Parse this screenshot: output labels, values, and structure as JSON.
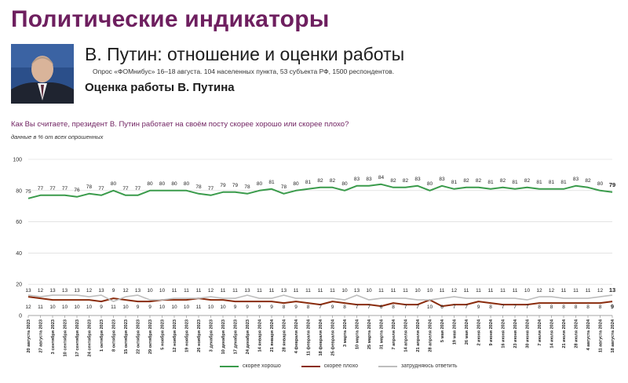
{
  "header": {
    "title": "Политические индикаторы",
    "subtitle": "В. Путин: отношение и оценки работы",
    "poll_info": "Опрос «ФОМнибус» 16–18 августа. 104 населенных пункта, 53 субъекта РФ, 1500 респондентов.",
    "section": "Оценка работы В. Путина",
    "question": "Как Вы считаете, президент В. Путин работает на своём посту скорее хорошо или скорее плохо?",
    "note": "данные в % от всех опрошенных"
  },
  "colors": {
    "good": "#3a9b4b",
    "bad": "#8a2c0d",
    "hard": "#bdbdbd",
    "title": "#6e1f5f"
  },
  "chart_data": {
    "type": "line",
    "ylim": [
      0,
      100
    ],
    "yticks": [
      0,
      20,
      40,
      60,
      80,
      100
    ],
    "grid": true,
    "legend_position": "bottom",
    "categories": [
      "20 августа 2023",
      "27 августа 2023",
      "3 сентября 2023",
      "10 сентября 2023",
      "17 сентября 2023",
      "24 сентября 2023",
      "1 октября 2023",
      "8 октября 2023",
      "15 октября 2023",
      "22 октября 2023",
      "29 октября 2023",
      "5 ноября 2023",
      "12 ноября 2023",
      "19 ноября 2023",
      "26 ноября 2023",
      "3 декабря 2023",
      "10 декабря 2023",
      "17 декабря 2023",
      "24 декабря 2023",
      "14 января 2024",
      "21 января 2024",
      "28 января 2024",
      "4 февраля 2024",
      "11 февраля 2024",
      "18 февраля 2024",
      "25 февраля 2024",
      "3 марта 2024",
      "10 марта 2024",
      "25 марта 2024",
      "31 марта 2024",
      "7 апреля 2024",
      "14 апреля 2024",
      "21 апреля 2024",
      "28 апреля 2024",
      "5 мая 2024",
      "19 мая 2024",
      "26 мая 2024",
      "2 июня 2024",
      "9 июня 2024",
      "16 июня 2024",
      "23 июня 2024",
      "30 июня 2024",
      "7 июля 2024",
      "14 июля 2024",
      "21 июля 2024",
      "28 июля 2024",
      "4 августа 2024",
      "11 августа 2024",
      "18 августа 2024"
    ],
    "series": [
      {
        "name": "скорее хорошо",
        "color": "#3a9b4b",
        "values": [
          75,
          77,
          77,
          77,
          76,
          78,
          77,
          80,
          77,
          77,
          80,
          80,
          80,
          80,
          78,
          77,
          79,
          79,
          78,
          80,
          81,
          78,
          80,
          81,
          82,
          82,
          80,
          83,
          83,
          84,
          82,
          82,
          83,
          80,
          83,
          81,
          82,
          82,
          81,
          82,
          81,
          82,
          81,
          81,
          81,
          83,
          82,
          80,
          79
        ]
      },
      {
        "name": "скорее плохо",
        "color": "#8a2c0d",
        "values": [
          12,
          11,
          10,
          10,
          10,
          10,
          9,
          11,
          10,
          9,
          9,
          10,
          10,
          10,
          11,
          10,
          10,
          9,
          9,
          9,
          9,
          8,
          9,
          8,
          7,
          9,
          8,
          7,
          7,
          6,
          8,
          7,
          7,
          10,
          6,
          7,
          7,
          9,
          8,
          7,
          7,
          7,
          8,
          8,
          8,
          8,
          8,
          8,
          9
        ]
      },
      {
        "name": "затрудняюсь ответить",
        "color": "#bdbdbd",
        "values": [
          13,
          12,
          13,
          13,
          13,
          12,
          13,
          9,
          12,
          13,
          10,
          10,
          11,
          11,
          11,
          12,
          11,
          11,
          13,
          11,
          11,
          13,
          11,
          11,
          11,
          11,
          10,
          13,
          10,
          11,
          11,
          11,
          10,
          10,
          11,
          12,
          11,
          11,
          11,
          11,
          11,
          10,
          12,
          12,
          11,
          11,
          11,
          12,
          13
        ]
      }
    ],
    "labels_good": [
      "75",
      "77",
      "77",
      "77",
      "76",
      "78",
      "77",
      "80",
      "77",
      "77",
      "80",
      "80",
      "80",
      "80",
      "78",
      "77",
      "79",
      "79",
      "78",
      "80",
      "81",
      "78",
      "80",
      "81",
      "82",
      "82",
      "80",
      "83",
      "83",
      "84",
      "82",
      "82",
      "83",
      "80",
      "83",
      "81",
      "82",
      "82",
      "81",
      "82",
      "81",
      "82",
      "81",
      "81",
      "81",
      "83",
      "82",
      "80",
      "79"
    ],
    "labels_top": [
      "13",
      "12",
      "13",
      "13",
      "13",
      "12",
      "13",
      "9",
      "12",
      "13",
      "10",
      "10",
      "11",
      "11",
      "11",
      "12",
      "11",
      "11",
      "13",
      "11",
      "11",
      "13",
      "11",
      "11",
      "11",
      "11",
      "10",
      "13",
      "10",
      "11",
      "11",
      "11",
      "10",
      "10",
      "11",
      "12",
      "11",
      "11",
      "11",
      "11",
      "11",
      "10",
      "12",
      "12",
      "11",
      "11",
      "11",
      "12",
      "13"
    ],
    "labels_bottom": [
      "12",
      "11",
      "10",
      "10",
      "10",
      "10",
      "9",
      "11",
      "10",
      "9",
      "9",
      "10",
      "10",
      "10",
      "11",
      "10",
      "10",
      "9",
      "9",
      "9",
      "9",
      "8",
      "9",
      "8",
      "7",
      "9",
      "8",
      "7",
      "7",
      "6",
      "8",
      "7",
      "7",
      "10",
      "6",
      "7",
      "7",
      "9",
      "8",
      "7",
      "7",
      "7",
      "8",
      "8",
      "8",
      "8",
      "8",
      "8",
      "9"
    ]
  }
}
